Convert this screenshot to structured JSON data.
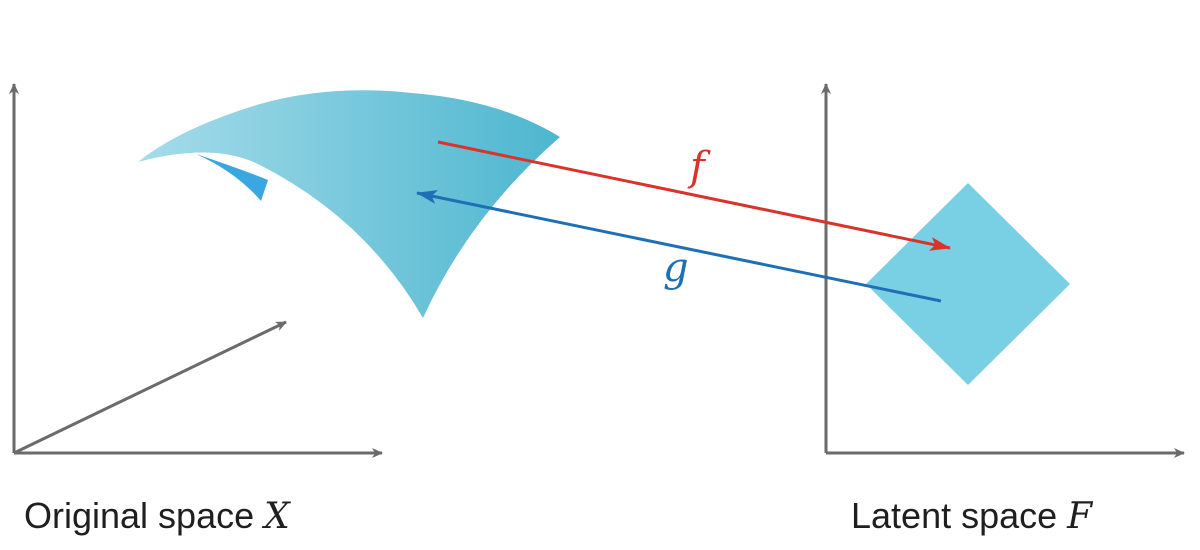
{
  "spaces": {
    "original": {
      "label": "Original space ",
      "symbol": "X"
    },
    "latent": {
      "label": "Latent space ",
      "symbol": "F"
    }
  },
  "mappings": {
    "forward": {
      "label": "f",
      "color": "#d9342b"
    },
    "inverse": {
      "label": "g",
      "color": "#1f6fb5"
    }
  },
  "colors": {
    "axis": "#6b6b6b",
    "manifold_light": "#a6dcea",
    "manifold_dark": "#4db6cf",
    "manifold_fold": "#3aa8e0",
    "latent_square": "#79cfe3"
  }
}
